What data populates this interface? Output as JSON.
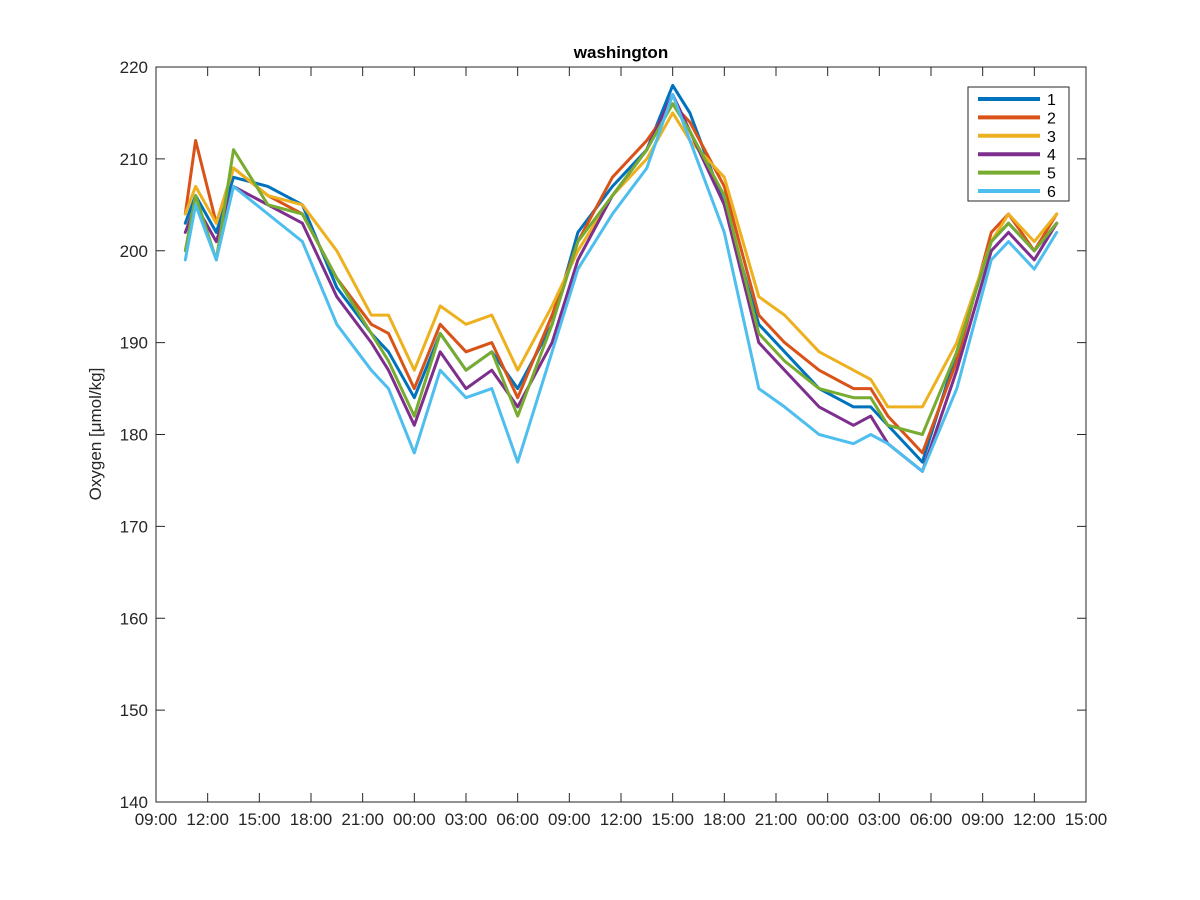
{
  "chart_data": {
    "type": "line",
    "title": "washington",
    "xlabel": "",
    "ylabel": "Oxygen [μmol/kg]",
    "ylim": [
      140,
      220
    ],
    "yticks": [
      140,
      150,
      160,
      170,
      180,
      190,
      200,
      210,
      220
    ],
    "xlim": [
      0,
      54
    ],
    "xtick_hours": [
      0,
      3,
      6,
      9,
      12,
      15,
      18,
      21,
      24,
      27,
      30,
      33,
      36,
      39,
      42,
      45,
      48,
      51,
      54
    ],
    "xtick_labels": [
      "09:00",
      "12:00",
      "15:00",
      "18:00",
      "21:00",
      "00:00",
      "03:00",
      "06:00",
      "09:00",
      "12:00",
      "15:00",
      "18:00",
      "21:00",
      "00:00",
      "03:00",
      "06:00",
      "09:00",
      "12:00",
      "15:00"
    ],
    "x_hours": [
      1.7,
      2.3,
      3.5,
      4.5,
      6.5,
      8.5,
      10.5,
      12.5,
      13.5,
      15.0,
      16.5,
      18.0,
      19.5,
      21.0,
      23.0,
      24.5,
      26.5,
      28.5,
      30.0,
      31.0,
      33.0,
      35.0,
      36.5,
      38.5,
      40.5,
      41.5,
      42.5,
      44.5,
      46.5,
      48.5,
      49.5,
      51.0,
      52.3
    ],
    "series": [
      {
        "name": "1",
        "color": "#0072BD",
        "values": [
          203,
          206,
          202,
          208,
          207,
          205,
          196,
          191,
          189,
          184,
          191,
          187,
          189,
          185,
          192,
          202,
          207,
          211,
          218,
          215,
          205,
          192,
          189,
          185,
          183,
          183,
          181,
          177,
          189,
          201,
          203,
          200,
          203
        ]
      },
      {
        "name": "2",
        "color": "#D95319",
        "values": [
          204,
          212,
          203,
          209,
          206,
          204,
          197,
          192,
          191,
          185,
          192,
          189,
          190,
          184,
          193,
          201,
          208,
          212,
          216,
          214,
          207,
          193,
          190,
          187,
          185,
          185,
          182,
          178,
          188,
          202,
          204,
          200,
          204
        ]
      },
      {
        "name": "3",
        "color": "#EDB120",
        "values": [
          204,
          207,
          203,
          209,
          206,
          205,
          200,
          193,
          193,
          187,
          194,
          192,
          193,
          187,
          194,
          200,
          206,
          210,
          215,
          212,
          208,
          195,
          193,
          189,
          187,
          186,
          183,
          183,
          190,
          201,
          204,
          201,
          204
        ]
      },
      {
        "name": "4",
        "color": "#7E2F8E",
        "values": [
          202,
          205,
          201,
          207,
          205,
          203,
          195,
          190,
          187,
          181,
          189,
          185,
          187,
          183,
          190,
          199,
          206,
          211,
          217,
          213,
          205,
          190,
          187,
          183,
          181,
          182,
          179,
          176,
          187,
          200,
          202,
          199,
          203
        ]
      },
      {
        "name": "5",
        "color": "#77AC30",
        "values": [
          200,
          206,
          199,
          211,
          205,
          204,
          197,
          191,
          188,
          182,
          191,
          187,
          189,
          182,
          192,
          201,
          206,
          211,
          216,
          213,
          206,
          191,
          188,
          185,
          184,
          184,
          181,
          180,
          189,
          201,
          203,
          200,
          203
        ]
      },
      {
        "name": "6",
        "color": "#4DBEEE",
        "values": [
          199,
          205,
          199,
          207,
          204,
          201,
          192,
          187,
          185,
          178,
          187,
          184,
          185,
          177,
          189,
          198,
          204,
          209,
          217,
          212,
          202,
          185,
          183,
          180,
          179,
          180,
          179,
          176,
          185,
          199,
          201,
          198,
          202
        ]
      }
    ],
    "legend": {
      "placement": "top-right",
      "box": true
    },
    "grid": false
  }
}
